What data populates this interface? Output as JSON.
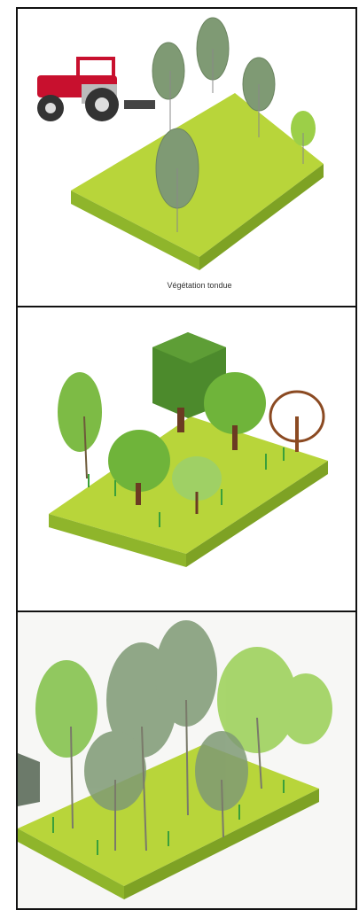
{
  "panels": [
    {
      "caption": "Végétation tondue"
    }
  ]
}
